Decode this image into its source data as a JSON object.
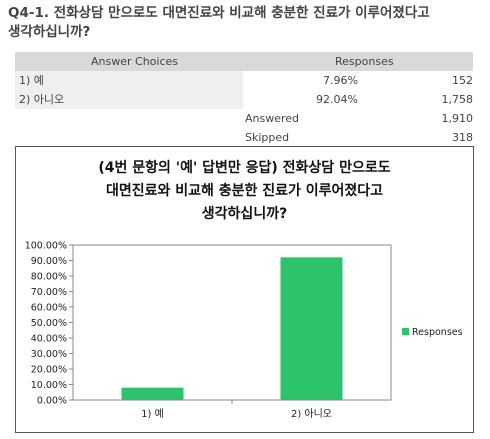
{
  "question": {
    "title_line1": "Q4-1. 전화상담 만으로도 대면진료와 비교해 충분한 진료가 이루어졌다고",
    "title_line2": "생각하십니까?"
  },
  "table": {
    "col_choices": "Answer Choices",
    "col_responses": "Responses",
    "rows": [
      {
        "choice": "1) 예",
        "percent": "7.96%",
        "count": "152"
      },
      {
        "choice": "2) 아니오",
        "percent": "92.04%",
        "count": "1,758"
      }
    ],
    "answered_label": "Answered",
    "answered_value": "1,910",
    "skipped_label": "Skipped",
    "skipped_value": "318"
  },
  "chart_data": {
    "type": "bar",
    "title_lines": [
      "(4번 문항의 '예' 답변만 응답) 전화상담 만으로도",
      "대면진료와 비교해 충분한 진료가 이루어졌다고",
      "생각하십니까?"
    ],
    "categories": [
      "1) 예",
      "2) 아니오"
    ],
    "series": [
      {
        "name": "Responses",
        "values": [
          7.96,
          92.04
        ]
      }
    ],
    "ylim": [
      0,
      100
    ],
    "yticks": [
      "0.00%",
      "10.00%",
      "20.00%",
      "30.00%",
      "40.00%",
      "50.00%",
      "60.00%",
      "70.00%",
      "80.00%",
      "90.00%",
      "100.00%"
    ],
    "bar_color": "#2cc36b",
    "legend_position": "right",
    "grid": false
  }
}
